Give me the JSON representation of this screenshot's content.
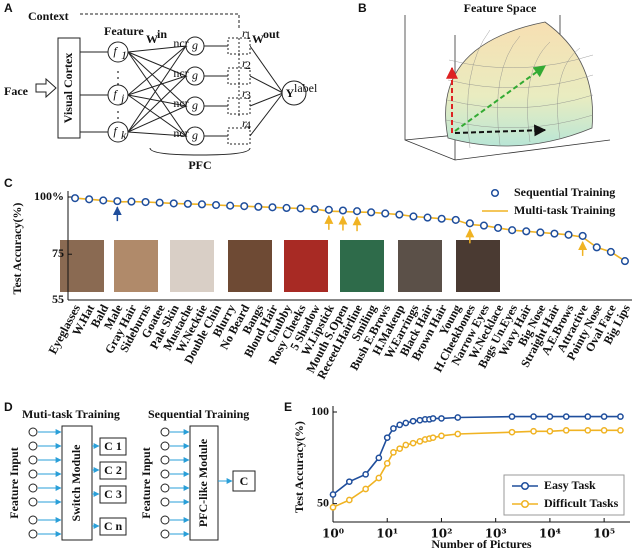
{
  "panel_labels": [
    "A",
    "B",
    "C",
    "D",
    "E"
  ],
  "diagram_a": {
    "context": "Context",
    "feature": "Feature",
    "face": "Face",
    "visual_cortex": "Visual Cortex",
    "w": "W",
    "w_in": "in",
    "w_out": "out",
    "f": "f",
    "f_subs": [
      "1",
      "j",
      "k"
    ],
    "g": "g",
    "gate": "ncr",
    "r": "r",
    "r_subs": [
      "1",
      "2",
      "3",
      "4"
    ],
    "y": "Y",
    "y_sup": "label",
    "pfc": "PFC"
  },
  "diagram_b": {
    "title": "Feature Space"
  },
  "diagram_d": {
    "left_title": "Muti-task Training",
    "right_title": "Sequential Training",
    "feature_input": "Feature Input",
    "switch": "Switch Module",
    "pfc_like": "PFC-like Module",
    "outputs": [
      "C 1",
      "C 2",
      "C 3",
      "C n"
    ],
    "output": "C"
  },
  "chart_data": [
    {
      "type": "line",
      "ylabel": "Test Accuracy(%)",
      "categories": [
        "Eyeglasses",
        "W.Hat",
        "Bald",
        "Male",
        "Gray Hair",
        "Sideburns",
        "Goatee",
        "Pale Skin",
        "Mustache",
        "W.Necktie",
        "Double Chin",
        "Blurry",
        "No Beard",
        "Bangs",
        "Blond Hair",
        "Chubby",
        "Rosy Cheeks",
        "5 Shadow",
        "W.Lipstick",
        "Mouth S.Open",
        "Receed.Hairline",
        "Smiling",
        "Bush E.Brows",
        "H.Makeup",
        "W.Earrings",
        "Black Hair",
        "Brown Hair",
        "Young",
        "H.Cheekbones",
        "Narrow Eyes",
        "W.Necklace",
        "Bags Un.Eyes",
        "Wavy Hair",
        "Big Nose",
        "Straight Hair",
        "A.E.Brows",
        "Attractive",
        "Pointy Nose",
        "Oval Face",
        "Big Lips"
      ],
      "ylim": [
        55,
        100
      ],
      "yticks": [
        55,
        75,
        {
          "value": 100,
          "label": "100%"
        }
      ],
      "legend": "upper right",
      "series": [
        {
          "name": "Sequential Training",
          "color": "#1f4e9c",
          "marker": "circle",
          "show_line": false,
          "values": [
            99.5,
            99,
            98.5,
            98.2,
            98,
            97.8,
            97.5,
            97.2,
            97,
            96.8,
            96.5,
            96.2,
            96,
            95.7,
            95.5,
            95.2,
            95,
            94.7,
            94.4,
            94.1,
            93.8,
            93.3,
            92.8,
            92.3,
            91.5,
            91,
            90.5,
            90,
            88.5,
            87.5,
            86.5,
            85.5,
            85,
            84.5,
            84,
            83.5,
            83,
            78,
            76,
            72
          ]
        },
        {
          "name": "Multi-task Training",
          "color": "#f0b323",
          "show_line": true,
          "values": [
            99.5,
            99,
            98.5,
            97.8,
            98,
            97.8,
            97.5,
            97.2,
            97,
            96.8,
            96.5,
            96.2,
            96,
            95.7,
            95.5,
            95.2,
            95,
            94.7,
            93.8,
            93.6,
            93.4,
            93.3,
            92.8,
            92.3,
            91.5,
            91,
            90.5,
            90,
            88,
            87.5,
            86.5,
            85.5,
            85,
            84.5,
            84,
            83.5,
            82.5,
            78,
            76,
            72
          ]
        }
      ]
    },
    {
      "type": "line",
      "xlabel": "Number of Pictures",
      "ylabel": "Test Accuracy(%)",
      "log_x": true,
      "x": [
        1,
        2,
        4,
        7,
        10,
        13,
        17,
        22,
        30,
        40,
        50,
        60,
        70,
        100,
        200,
        2000,
        5000,
        10000,
        20000,
        50000,
        100000,
        200000
      ],
      "xlim": [
        1,
        300000
      ],
      "xticks": [
        {
          "value": 1,
          "label": "10⁰"
        },
        {
          "value": 10,
          "label": "10¹"
        },
        {
          "value": 100,
          "label": "10²"
        },
        {
          "value": 1000,
          "label": "10³"
        },
        {
          "value": 10000,
          "label": "10⁴"
        },
        {
          "value": 100000,
          "label": "10⁵"
        }
      ],
      "ylim": [
        40,
        100
      ],
      "yticks": [
        50,
        100
      ],
      "legend": "lower right",
      "series": [
        {
          "name": "Easy Task",
          "color": "#1f4e9c",
          "marker": "circle",
          "show_line": true,
          "values": [
            55,
            62,
            66,
            75,
            86,
            91,
            93,
            94,
            95,
            95.5,
            96,
            96,
            96.5,
            96.5,
            97,
            97.5,
            97.5,
            97.5,
            97.5,
            97.5,
            97.5,
            97.5
          ]
        },
        {
          "name": "Difficult Tasks",
          "color": "#f0b323",
          "marker": "circle",
          "show_line": true,
          "values": [
            48,
            52,
            58,
            64,
            72,
            78,
            80,
            82,
            83,
            84,
            85,
            85.5,
            86,
            87,
            88,
            89,
            89.5,
            89.5,
            90,
            90,
            90,
            90
          ]
        }
      ]
    }
  ]
}
